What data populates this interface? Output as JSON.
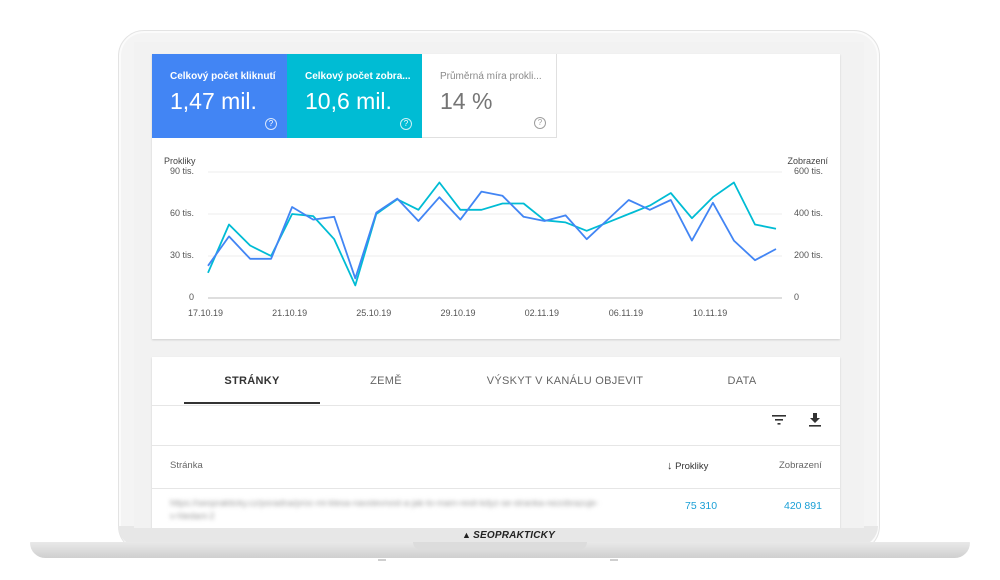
{
  "metrics": [
    {
      "label": "Celkový počet kliknutí",
      "value": "1,47 mil."
    },
    {
      "label": "Celkový počet zobra...",
      "value": "10,6 mil."
    },
    {
      "label": "Průměrná míra prokli...",
      "value": "14 %"
    }
  ],
  "chart_data": {
    "type": "line",
    "left_axis_title": "Prokliky",
    "right_axis_title": "Zobrazení",
    "left_ticks": [
      "0",
      "30 tis.",
      "60 tis.",
      "90 tis."
    ],
    "right_ticks": [
      "0",
      "200 tis.",
      "400 tis.",
      "600 tis."
    ],
    "x_ticks": [
      "17.10.19",
      "21.10.19",
      "25.10.19",
      "29.10.19",
      "02.11.19",
      "06.11.19",
      "10.11.19"
    ],
    "ylim_left": [
      0,
      90000
    ],
    "ylim_right": [
      0,
      600000
    ],
    "series": [
      {
        "name": "Prokliky",
        "axis": "left",
        "color": "#4285f4",
        "values": [
          23000,
          44000,
          28000,
          28000,
          65000,
          56000,
          58000,
          14000,
          61000,
          71000,
          55000,
          72000,
          56000,
          76000,
          73000,
          58000,
          55000,
          59000,
          42000,
          56000,
          70000,
          63000,
          70000,
          41000,
          68000,
          41000,
          27000,
          35000
        ]
      },
      {
        "name": "Zobrazení",
        "axis": "right",
        "color": "#00bcd4",
        "values": [
          120000,
          350000,
          250000,
          200000,
          400000,
          390000,
          280000,
          60000,
          400000,
          470000,
          420000,
          550000,
          420000,
          420000,
          450000,
          450000,
          370000,
          360000,
          320000,
          360000,
          400000,
          440000,
          500000,
          380000,
          480000,
          550000,
          350000,
          330000
        ]
      }
    ]
  },
  "tabs": [
    "STRÁNKY",
    "ZEMĚ",
    "VÝSKYT V KANÁLU OBJEVIT",
    "DATA"
  ],
  "table": {
    "col_page": "Stránka",
    "col_clicks": "Prokliky",
    "col_impressions": "Zobrazení",
    "rows": [
      {
        "url": "https://seoprakticky.cz/poradna/proc-mi-klesa-navstevnost-a-jak-to-mam-resit-kdyz-se-stranka-nezobrazuje-v-hledani-2",
        "clicks": "75 310",
        "impressions": "420 891"
      }
    ]
  },
  "icons": {
    "filter": "filter-icon",
    "download": "download-icon",
    "sort": "arrow-down-icon",
    "help": "help-circle-icon"
  },
  "brand": "SEOPRAKTICKY",
  "colors": {
    "clicks": "#4285f4",
    "impressions": "#00bcd4",
    "link": "#1a9fd6"
  }
}
